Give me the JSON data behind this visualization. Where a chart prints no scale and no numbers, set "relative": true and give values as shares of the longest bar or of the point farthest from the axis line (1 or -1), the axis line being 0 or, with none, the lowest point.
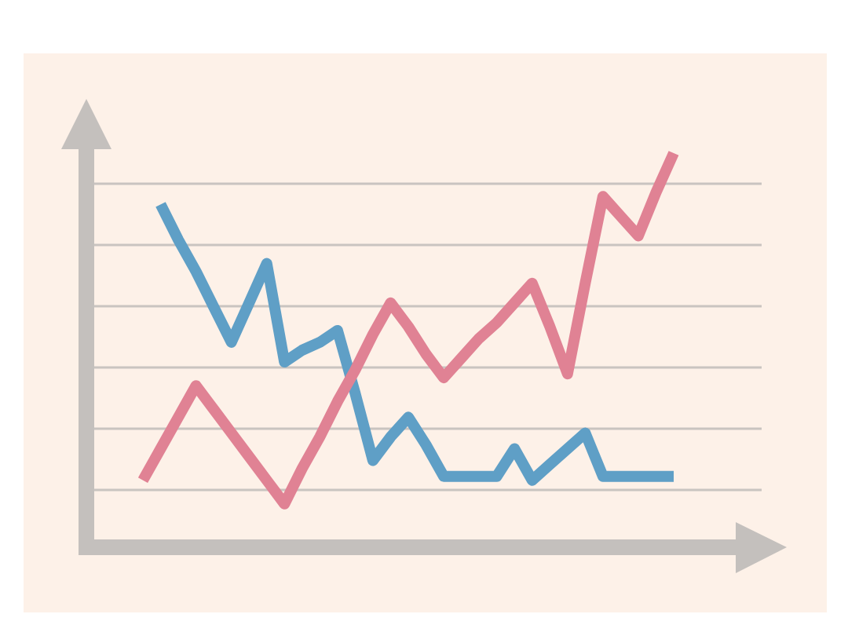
{
  "chart_data": {
    "type": "line",
    "relative": true,
    "grid": "y",
    "marker": "none",
    "categories": [
      null,
      null,
      null,
      null,
      null,
      null,
      null,
      null,
      null,
      null,
      null,
      null,
      null,
      null,
      null,
      null,
      null,
      null,
      null,
      null,
      null,
      null,
      null,
      null,
      null,
      null,
      null,
      null,
      null,
      null,
      null
    ],
    "series": [
      {
        "color": "#5f9fc6",
        "values": [
          null,
          0.87,
          0.78,
          0.7,
          0.61,
          0.52,
          0.62,
          0.72,
          0.47,
          0.5,
          0.52,
          0.55,
          0.39,
          0.22,
          0.28,
          0.33,
          0.26,
          0.18,
          0.18,
          0.18,
          0.18,
          0.25,
          0.17,
          0.21,
          0.25,
          0.29,
          0.18,
          0.18,
          0.18,
          0.18,
          0.18
        ]
      },
      {
        "color": "#e08294",
        "values": [
          0.17,
          0.25,
          0.33,
          0.41,
          0.35,
          0.29,
          0.23,
          0.17,
          0.11,
          0.2,
          0.28,
          0.37,
          0.45,
          0.54,
          0.62,
          0.56,
          0.49,
          0.43,
          0.48,
          0.53,
          0.57,
          0.62,
          0.67,
          0.56,
          0.44,
          0.67,
          0.89,
          0.84,
          0.79,
          0.9,
          1
        ]
      }
    ]
  }
}
